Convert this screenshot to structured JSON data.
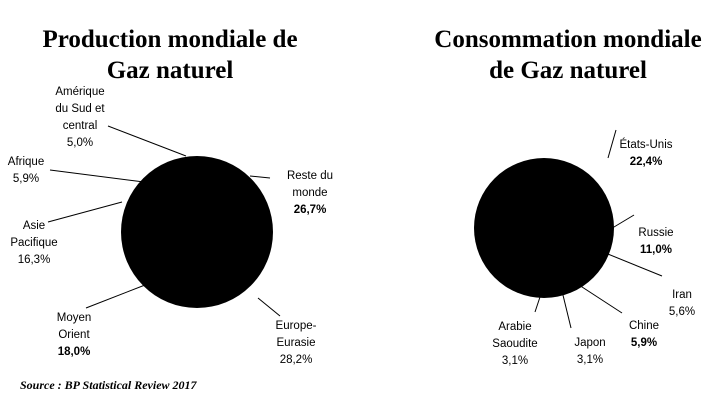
{
  "chart_data": [
    {
      "type": "pie",
      "title": "Production mondiale de Gaz naturel",
      "slices": [
        {
          "label": "Reste du monde",
          "value": 26.7,
          "value_label": "26,7%"
        },
        {
          "label": "Europe-Eurasie",
          "value": 28.2,
          "value_label": "28,2%"
        },
        {
          "label": "Moyen Orient",
          "value": 18.0,
          "value_label": "18,0%"
        },
        {
          "label": "Asie Pacifique",
          "value": 16.3,
          "value_label": "16,3%"
        },
        {
          "label": "Afrique",
          "value": 5.9,
          "value_label": "5,9%"
        },
        {
          "label": "Amérique du Sud et central",
          "value": 5.0,
          "value_label": "5,0%"
        }
      ],
      "slice_color": "#000000",
      "legend": "none"
    },
    {
      "type": "pie",
      "title": "Consommation mondiale de Gaz naturel",
      "slices": [
        {
          "label": "États-Unis",
          "value": 22.4,
          "value_label": "22,4%"
        },
        {
          "label": "Russie",
          "value": 11.0,
          "value_label": "11,0%"
        },
        {
          "label": "Iran",
          "value": 5.6,
          "value_label": "5,6%"
        },
        {
          "label": "Chine",
          "value": 5.9,
          "value_label": "5,9%"
        },
        {
          "label": "Japon",
          "value": 3.1,
          "value_label": "3,1%"
        },
        {
          "label": "Arabie Saoudite",
          "value": 3.1,
          "value_label": "3,1%"
        }
      ],
      "slice_color": "#000000",
      "legend": "none"
    }
  ],
  "titles": {
    "production_line1": "Production mondiale de",
    "production_line2": "Gaz naturel",
    "consommation_line1": "Consommation mondiale",
    "consommation_line2": "de Gaz naturel"
  },
  "labels": {
    "amerique_1": "Amérique",
    "amerique_2": "du Sud et",
    "amerique_3": "central",
    "afrique": "Afrique",
    "asie_1": "Asie",
    "asie_2": "Pacifique",
    "moyen_1": "Moyen",
    "moyen_2": "Orient",
    "reste_1": "Reste du",
    "reste_2": "monde",
    "europe_1": "Europe-",
    "europe_2": "Eurasie",
    "etats_unis": "États-Unis",
    "russie": "Russie",
    "iran": "Iran",
    "chine": "Chine",
    "japon": "Japon",
    "arabie_1": "Arabie",
    "arabie_2": "Saoudite"
  },
  "source": "Source : BP Statistical Review 2017"
}
